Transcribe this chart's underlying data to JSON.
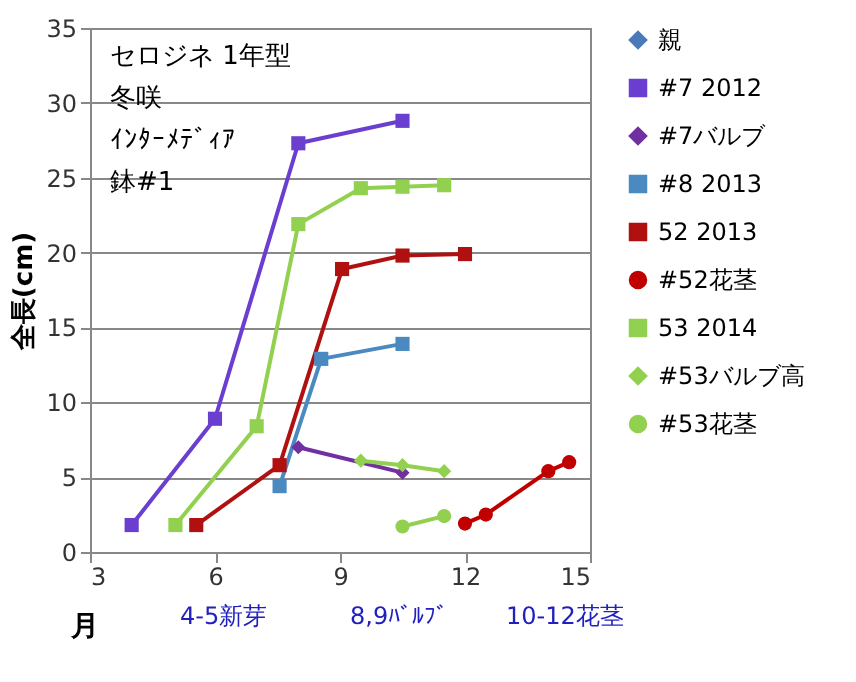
{
  "chart_data": {
    "type": "line",
    "xlabel": "月",
    "ylabel": "全長(cm)",
    "annotations": [
      "セロジネ  1年型",
      "冬咲",
      "ｲﾝﾀｰﾒﾃﾞｨｱ",
      "鉢#1",
      "4-5新芽",
      "8,9ﾊﾞﾙﾌﾞ",
      "10-12花茎"
    ],
    "xlim": [
      3,
      15
    ],
    "xticks": [
      3,
      6,
      9,
      12,
      15
    ],
    "ylim": [
      0,
      35
    ],
    "yticks": [
      0,
      5,
      10,
      15,
      20,
      25,
      30,
      35
    ],
    "grid": "y",
    "legend": "right",
    "series": [
      {
        "name": "親",
        "color": "#4a7ab8",
        "marker": "diamond"
      },
      {
        "name": "#7 2012",
        "color": "#6a3fd0",
        "marker": "square",
        "x": [
          4.0,
          6.0,
          8.0,
          10.5
        ],
        "values": [
          1.8,
          8.9,
          27.3,
          28.8
        ]
      },
      {
        "name": "#7バルブ",
        "color": "#7030a0",
        "marker": "diamond",
        "x": [
          8.0,
          10.5
        ],
        "values": [
          7.0,
          5.3
        ]
      },
      {
        "name": "#8 2013",
        "color": "#4a8ac0",
        "marker": "square",
        "x": [
          7.55,
          8.55,
          10.5
        ],
        "values": [
          4.4,
          12.9,
          13.9
        ]
      },
      {
        "name": "52 2013",
        "color": "#b01010",
        "marker": "square",
        "x": [
          5.55,
          7.55,
          9.05,
          10.5,
          12.0
        ],
        "values": [
          1.8,
          5.8,
          18.9,
          19.8,
          19.9
        ]
      },
      {
        "name": "#52花茎",
        "color": "#c00000",
        "marker": "circle",
        "x": [
          12.0,
          12.5,
          14.0,
          14.5
        ],
        "values": [
          1.9,
          2.5,
          5.4,
          6.0
        ]
      },
      {
        "name": "53 2014",
        "color": "#92d050",
        "marker": "square",
        "x": [
          5.05,
          7.0,
          8.0,
          9.5,
          10.5,
          11.5
        ],
        "values": [
          1.8,
          8.4,
          21.9,
          24.3,
          24.4,
          24.5
        ]
      },
      {
        "name": "#53バルブ高",
        "color": "#92d050",
        "marker": "diamond",
        "x": [
          9.5,
          10.5,
          11.5
        ],
        "values": [
          6.1,
          5.8,
          5.4
        ]
      },
      {
        "name": "#53花茎",
        "color": "#92d050",
        "marker": "circle",
        "x": [
          10.5,
          11.5
        ],
        "values": [
          1.7,
          2.4
        ]
      }
    ]
  }
}
